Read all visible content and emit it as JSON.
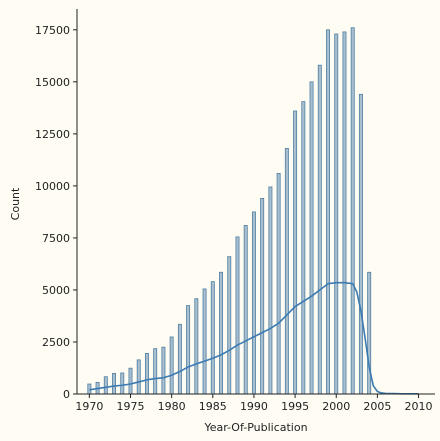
{
  "chart_data": {
    "type": "bar",
    "xlabel": "Year-Of-Publication",
    "ylabel": "Count",
    "xlim": [
      1968.5,
      2012
    ],
    "ylim": [
      0,
      18500
    ],
    "xticks": [
      1970,
      1975,
      1980,
      1985,
      1990,
      1995,
      2000,
      2005,
      2010
    ],
    "xtick_labels": [
      "1970",
      "1975",
      "1980",
      "1985",
      "1990",
      "1995",
      "2000",
      "2005",
      "2010"
    ],
    "yticks": [
      0,
      2500,
      5000,
      7500,
      10000,
      12500,
      15000,
      17500
    ],
    "ytick_labels": [
      "0",
      "2500",
      "5000",
      "7500",
      "10000",
      "12500",
      "15000",
      "17500"
    ],
    "grid": false,
    "series": [
      {
        "type": "bar",
        "x": [
          1970,
          1971,
          1972,
          1973,
          1974,
          1975,
          1976,
          1977,
          1978,
          1979,
          1980,
          1981,
          1982,
          1983,
          1984,
          1985,
          1986,
          1987,
          1988,
          1989,
          1990,
          1991,
          1992,
          1993,
          1994,
          1995,
          1996,
          1997,
          1998,
          1999,
          2000,
          2001,
          2002,
          2003,
          2004
        ],
        "values": [
          480,
          560,
          830,
          990,
          1010,
          1240,
          1640,
          1950,
          2180,
          2250,
          2740,
          3350,
          4250,
          4580,
          5050,
          5400,
          5850,
          6600,
          7550,
          8100,
          8750,
          9400,
          9950,
          10600,
          11800,
          13600,
          14050,
          15000,
          15800,
          17500,
          17300,
          17400,
          17600,
          14400,
          5850
        ]
      },
      {
        "type": "line",
        "x": [
          1970,
          1971,
          1972,
          1973,
          1974,
          1975,
          1976,
          1977,
          1978,
          1979,
          1980,
          1981,
          1982,
          1983,
          1984,
          1985,
          1986,
          1987,
          1988,
          1989,
          1990,
          1991,
          1992,
          1993,
          1994,
          1995,
          1996,
          1997,
          1998,
          1999,
          2000,
          2001,
          2002,
          2002.5,
          2003,
          2003.5,
          2004,
          2004.5,
          2005,
          2005.5,
          2006,
          2007,
          2008,
          2009,
          2010
        ],
        "values": [
          200,
          260,
          320,
          380,
          420,
          480,
          580,
          680,
          740,
          780,
          900,
          1080,
          1300,
          1450,
          1580,
          1720,
          1880,
          2100,
          2350,
          2550,
          2750,
          2950,
          3150,
          3400,
          3800,
          4200,
          4450,
          4700,
          5000,
          5300,
          5350,
          5350,
          5300,
          4900,
          4000,
          2700,
          1300,
          400,
          120,
          50,
          30,
          20,
          10,
          10,
          10
        ]
      }
    ],
    "colors": {
      "bar_fill": "#a9bfcf",
      "bar_edge": "#4f7fa3",
      "line": "#3b7bb2",
      "axis": "#222222",
      "background": "#fffdf3"
    }
  }
}
